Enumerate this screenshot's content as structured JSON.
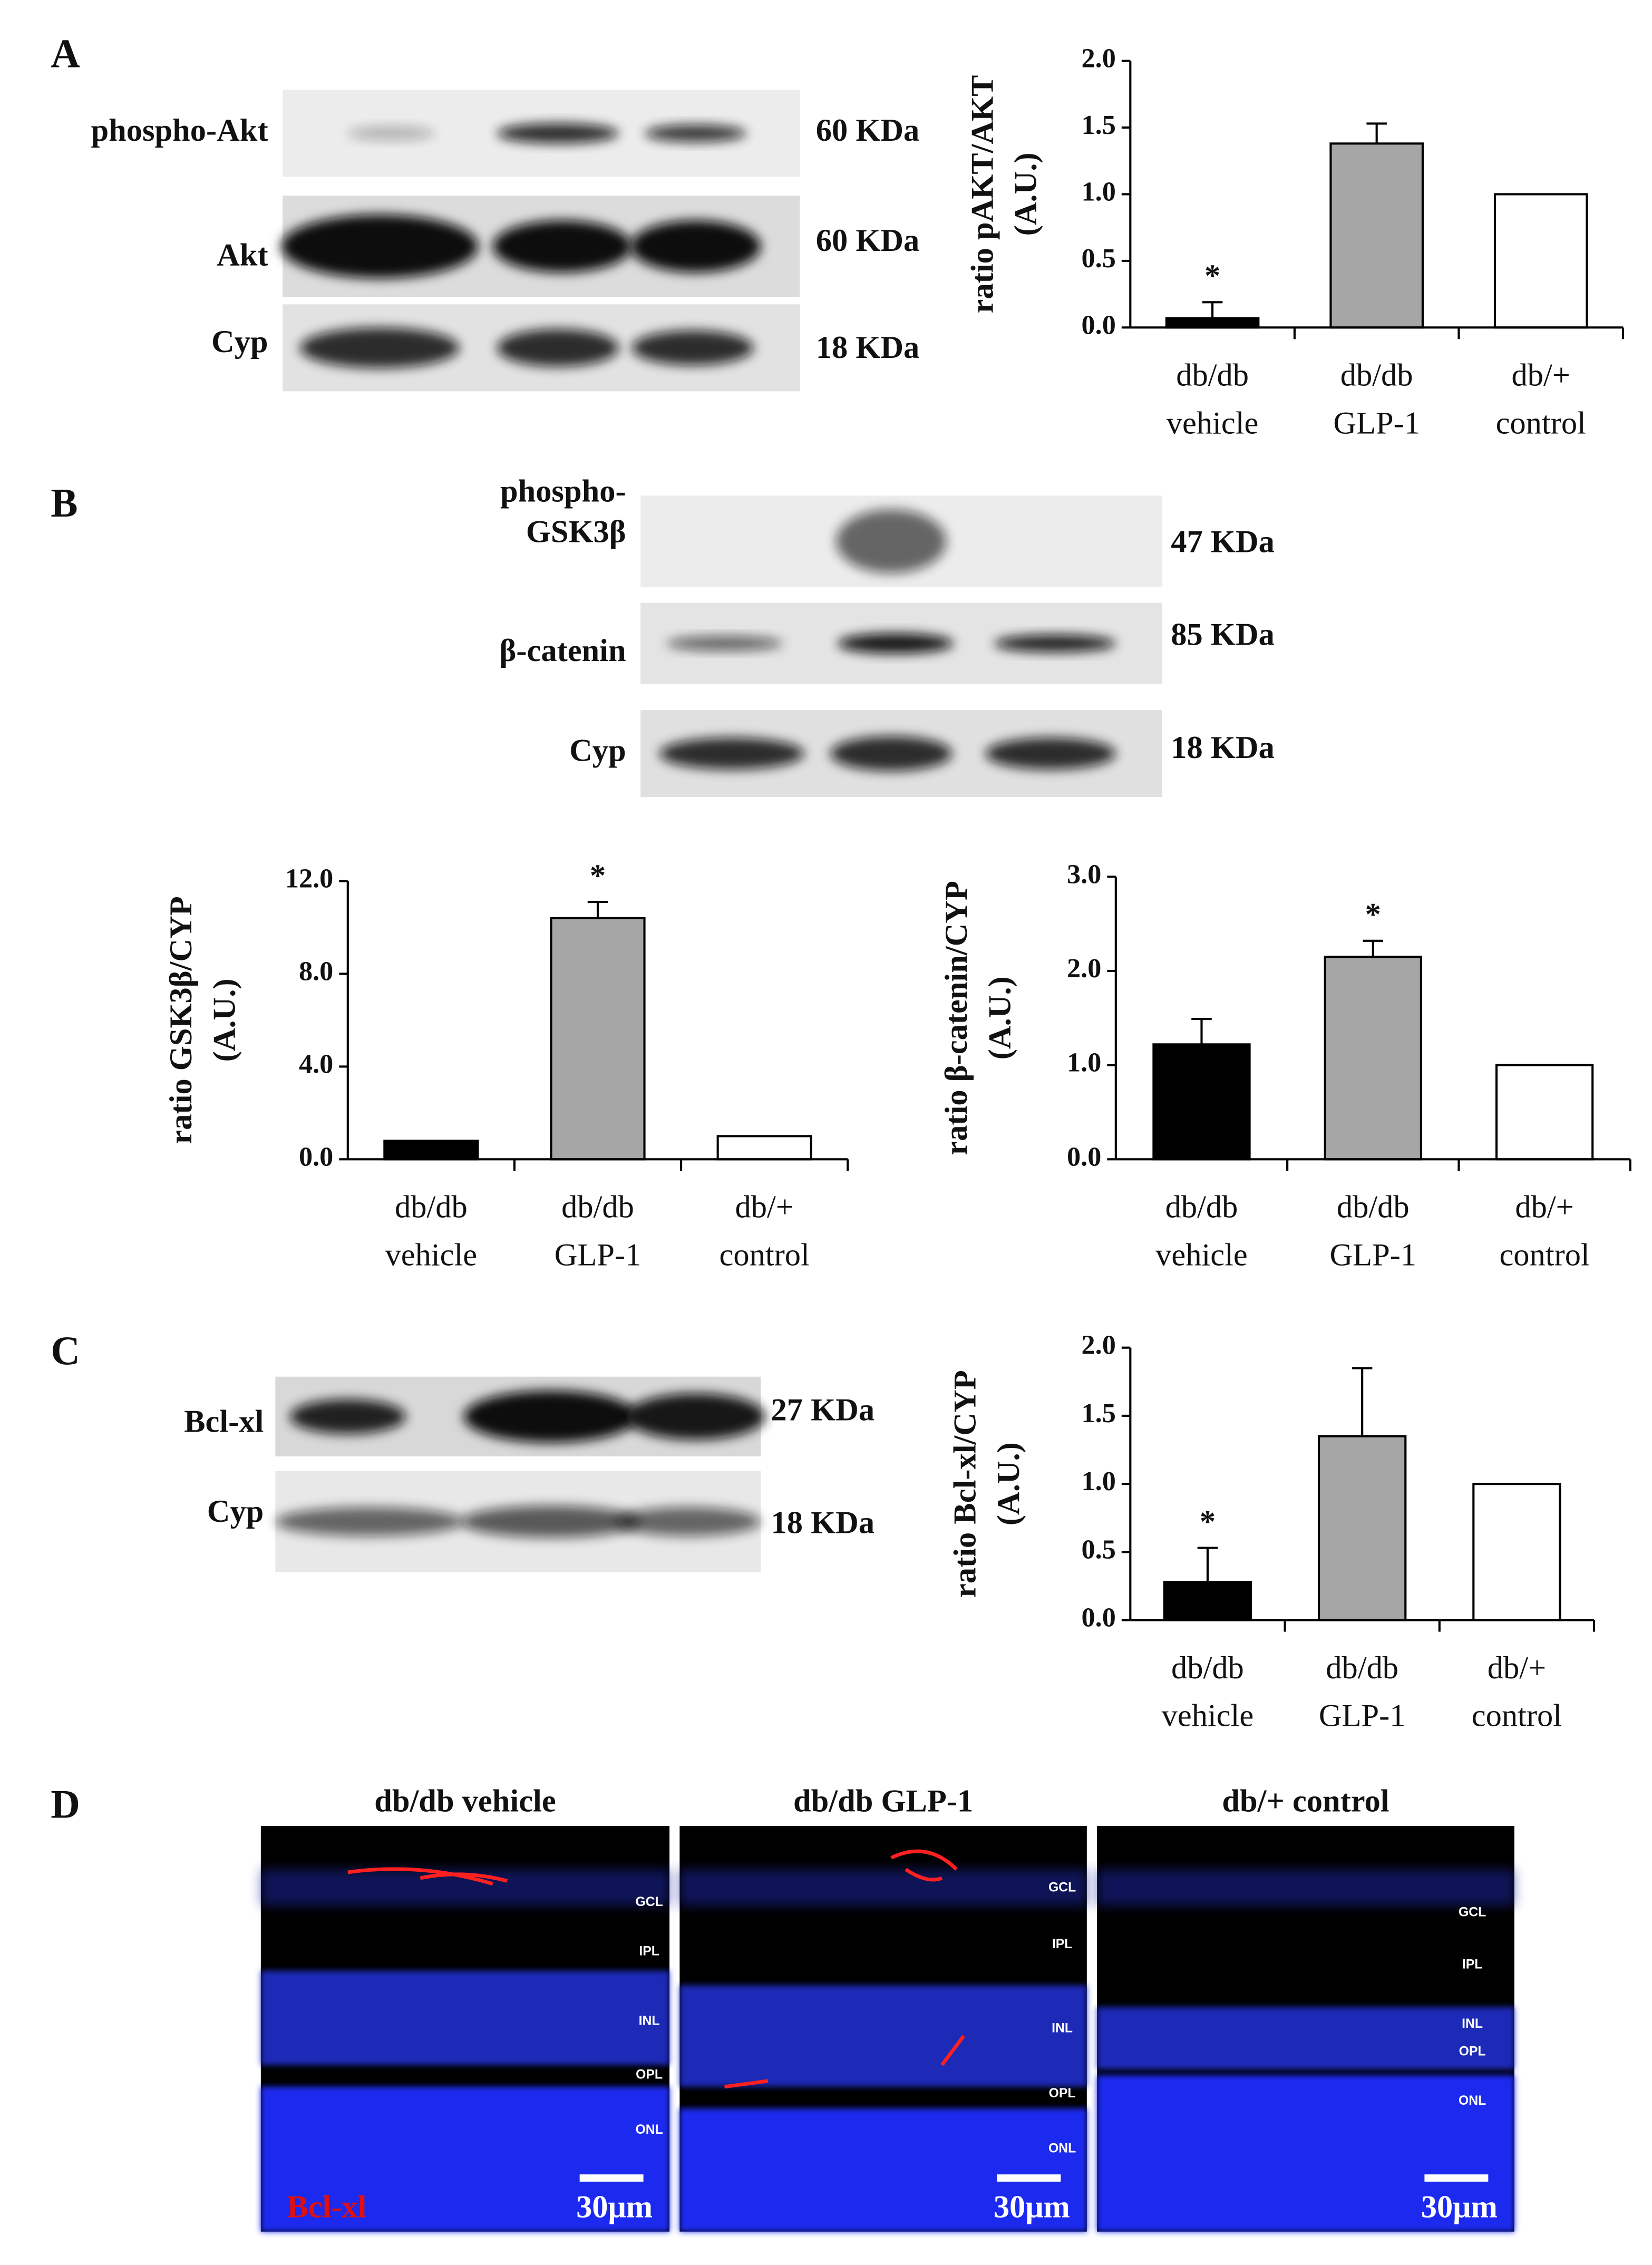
{
  "panel_labels": [
    "A",
    "B",
    "C",
    "D"
  ],
  "blots": [
    {
      "rows": [
        {
          "label": [
            "phospho-Akt"
          ],
          "size": "60 KDa"
        },
        {
          "label": [
            "Akt"
          ],
          "size": "60 KDa"
        },
        {
          "label": [
            "Cyp"
          ],
          "size": "18 KDa"
        }
      ]
    },
    {
      "rows": [
        {
          "label": [
            "phospho-",
            "GSK3β"
          ],
          "size": "47 KDa"
        },
        {
          "label": [
            "β-catenin"
          ],
          "size": "85 KDa"
        },
        {
          "label": [
            "Cyp"
          ],
          "size": "18 KDa"
        }
      ]
    },
    {
      "rows": [
        {
          "label": [
            "Bcl-xl"
          ],
          "size": "27 KDa"
        },
        {
          "label": [
            "Cyp"
          ],
          "size": "18 KDa"
        }
      ]
    }
  ],
  "chart_data": [
    {
      "type": "bar",
      "ylabel": [
        "ratio pAKT/AKT",
        "(A.U.)"
      ],
      "categories": [
        "db/db vehicle",
        "db/db GLP-1",
        "db/+ control"
      ],
      "values": [
        0.07,
        1.38,
        1.0
      ],
      "errors": [
        0.12,
        0.15,
        null
      ],
      "colors": [
        "#000000",
        "#a6a6a6",
        "#ffffff"
      ],
      "ylim": [
        0,
        2
      ],
      "yticks": [
        {
          "value": 0,
          "label": "0.0"
        },
        {
          "value": 0.5,
          "label": "0.5"
        },
        {
          "value": 1,
          "label": "1.0"
        },
        {
          "value": 1.5,
          "label": "1.5"
        },
        {
          "value": 2,
          "label": "2.0"
        }
      ],
      "annotations": [
        {
          "text": "*",
          "category": "db/db vehicle"
        }
      ]
    },
    {
      "type": "bar",
      "ylabel": [
        "ratio GSK3β/CYP",
        "(A.U.)"
      ],
      "categories": [
        "db/db vehicle",
        "db/db GLP-1",
        "db/+ control"
      ],
      "values": [
        0.8,
        10.4,
        1.0
      ],
      "errors": [
        null,
        0.7,
        null
      ],
      "colors": [
        "#000000",
        "#a6a6a6",
        "#ffffff"
      ],
      "ylim": [
        0,
        12
      ],
      "yticks": [
        {
          "value": 0,
          "label": "0.0"
        },
        {
          "value": 4,
          "label": "4.0"
        },
        {
          "value": 8,
          "label": "8.0"
        },
        {
          "value": 12,
          "label": "12.0"
        }
      ],
      "annotations": [
        {
          "text": "*",
          "category": "db/db GLP-1"
        }
      ]
    },
    {
      "type": "bar",
      "ylabel": [
        "ratio β-catenin/CYP",
        "(A.U.)"
      ],
      "categories": [
        "db/db vehicle",
        "db/db GLP-1",
        "db/+ control"
      ],
      "values": [
        1.22,
        2.15,
        1.0
      ],
      "errors": [
        0.27,
        0.17,
        null
      ],
      "colors": [
        "#000000",
        "#a6a6a6",
        "#ffffff"
      ],
      "ylim": [
        0,
        3
      ],
      "yticks": [
        {
          "value": 0,
          "label": "0.0"
        },
        {
          "value": 1,
          "label": "1.0"
        },
        {
          "value": 2,
          "label": "2.0"
        },
        {
          "value": 3,
          "label": "3.0"
        }
      ],
      "annotations": [
        {
          "text": "*",
          "category": "db/db GLP-1"
        }
      ]
    },
    {
      "type": "bar",
      "ylabel": [
        "ratio Bcl-xl/CYP",
        "(A.U.)"
      ],
      "categories": [
        "db/db vehicle",
        "db/db GLP-1",
        "db/+ control"
      ],
      "values": [
        0.28,
        1.35,
        1.0
      ],
      "errors": [
        0.25,
        0.5,
        null
      ],
      "colors": [
        "#000000",
        "#a6a6a6",
        "#ffffff"
      ],
      "ylim": [
        0,
        2
      ],
      "yticks": [
        {
          "value": 0,
          "label": "0.0"
        },
        {
          "value": 0.5,
          "label": "0.5"
        },
        {
          "value": 1,
          "label": "1.0"
        },
        {
          "value": 1.5,
          "label": "1.5"
        },
        {
          "value": 2,
          "label": "2.0"
        }
      ],
      "annotations": [
        {
          "text": "*",
          "category": "db/db vehicle"
        }
      ]
    }
  ],
  "microscopy": {
    "stain_label": "Bcl-xl",
    "panels": [
      {
        "title": "db/db vehicle",
        "layers": [
          "GCL",
          "IPL",
          "INL",
          "OPL",
          "ONL"
        ],
        "scale_bar": "30μm"
      },
      {
        "title": "db/db  GLP-1",
        "layers": [
          "GCL",
          "IPL",
          "INL",
          "OPL",
          "ONL"
        ],
        "scale_bar": "30μm"
      },
      {
        "title": "db/+ control",
        "layers": [
          "GCL",
          "IPL",
          "INL",
          "OPL",
          "ONL"
        ],
        "scale_bar": "30μm"
      }
    ]
  }
}
